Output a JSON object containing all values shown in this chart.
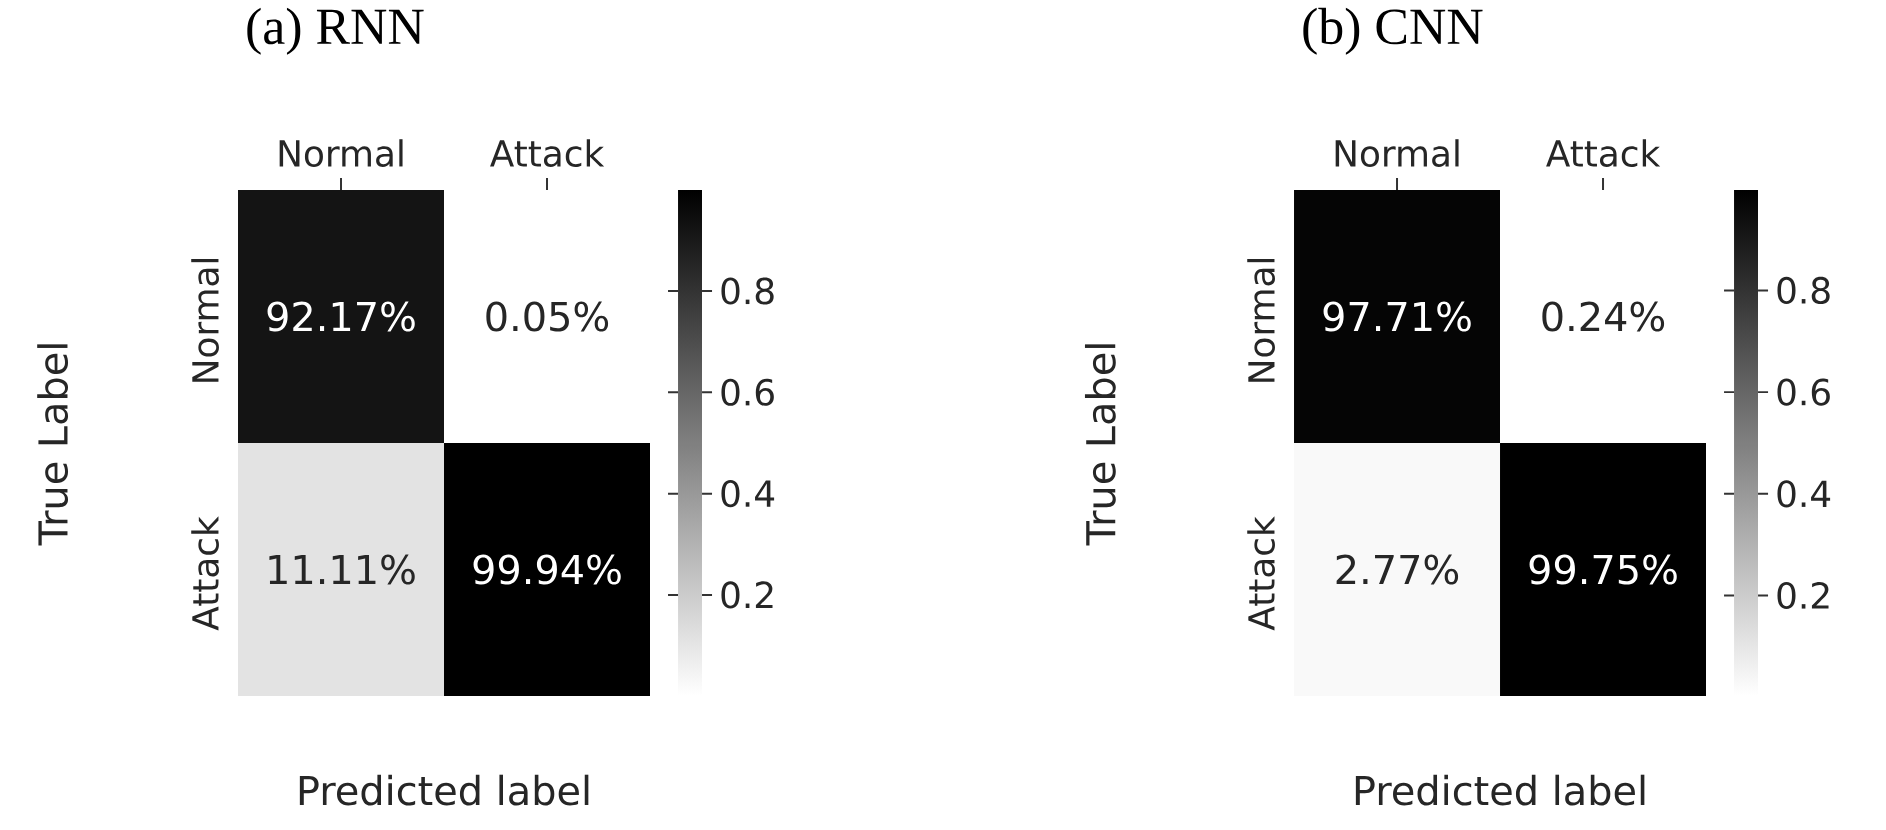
{
  "chart_data": [
    {
      "type": "heatmap",
      "title": "(a) RNN",
      "xlabel": "Predicted label",
      "ylabel": "True Label",
      "categories": [
        "Normal",
        "Attack"
      ],
      "y_categories": [
        "Normal",
        "Attack"
      ],
      "cells": [
        [
          0.9217,
          0.0005
        ],
        [
          0.1111,
          0.9994
        ]
      ],
      "cell_labels": [
        [
          "92.17%",
          "0.05%"
        ],
        [
          "11.11%",
          "99.94%"
        ]
      ],
      "clim": [
        0.0005,
        0.9994
      ],
      "cticks": [
        0.2,
        0.4,
        0.6,
        0.8
      ]
    },
    {
      "type": "heatmap",
      "title": "(b) CNN",
      "xlabel": "Predicted label",
      "ylabel": "True Label",
      "categories": [
        "Normal",
        "Attack"
      ],
      "y_categories": [
        "Normal",
        "Attack"
      ],
      "cells": [
        [
          0.9771,
          0.0024
        ],
        [
          0.0277,
          0.9975
        ]
      ],
      "cell_labels": [
        [
          "97.71%",
          "0.24%"
        ],
        [
          "2.77%",
          "99.75%"
        ]
      ],
      "clim": [
        0.0024,
        0.9975
      ],
      "cticks": [
        0.2,
        0.4,
        0.6,
        0.8
      ]
    }
  ]
}
